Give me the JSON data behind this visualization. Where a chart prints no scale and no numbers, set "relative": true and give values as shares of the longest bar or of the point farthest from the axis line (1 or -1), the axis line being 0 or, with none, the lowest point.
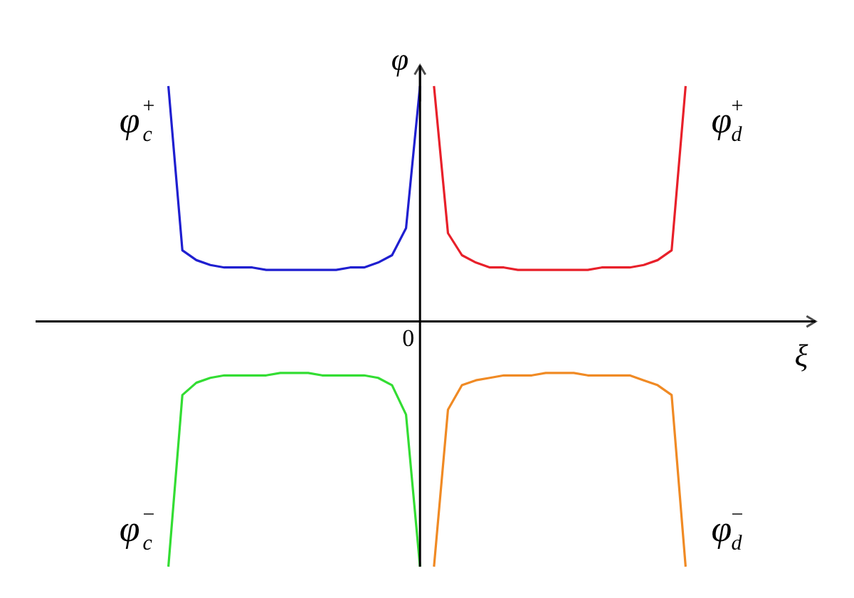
{
  "chart_data": {
    "type": "line",
    "relative": true,
    "xlabel": "ξ",
    "ylabel": "φ",
    "marker": "none",
    "line_style": "solid",
    "categories": [
      null,
      null,
      null,
      null,
      null,
      null,
      null,
      null,
      null,
      null,
      null,
      null,
      null,
      null,
      null,
      null,
      null,
      null,
      null,
      null,
      null,
      null,
      null,
      null,
      null,
      null,
      null,
      null,
      null,
      null,
      null,
      null,
      null,
      null,
      null,
      null,
      null,
      null,
      null,
      null,
      null,
      null,
      null,
      null,
      null,
      null,
      null,
      null,
      null,
      null,
      null,
      null,
      null,
      null,
      null,
      null,
      null
    ],
    "series": [
      {
        "name": "φ$_{c}$$^{+}$",
        "color": "#1f1fd0",
        "values": [
          null,
          null,
          null,
          null,
          null,
          null,
          null,
          null,
          null,
          null,
          0.96,
          0.29,
          0.25,
          0.23,
          0.22,
          0.22,
          0.22,
          0.21,
          0.21,
          0.21,
          0.21,
          0.21,
          0.21,
          0.22,
          0.22,
          0.24,
          0.27,
          0.38,
          0.96,
          null,
          null,
          null,
          null,
          null,
          null,
          null,
          null,
          null,
          null,
          null,
          null,
          null,
          null,
          null,
          null,
          null,
          null,
          null,
          null,
          null,
          null,
          null,
          null,
          null,
          null,
          null,
          null
        ]
      },
      {
        "name": "φ$_{d}$$^{+}$",
        "color": "#e8202a",
        "values": [
          null,
          null,
          null,
          null,
          null,
          null,
          null,
          null,
          null,
          null,
          null,
          null,
          null,
          null,
          null,
          null,
          null,
          null,
          null,
          null,
          null,
          null,
          null,
          null,
          null,
          null,
          null,
          null,
          null,
          0.96,
          0.36,
          0.27,
          0.24,
          0.22,
          0.22,
          0.21,
          0.21,
          0.21,
          0.21,
          0.21,
          0.21,
          0.22,
          0.22,
          0.22,
          0.23,
          0.25,
          0.29,
          0.96,
          null,
          null,
          null,
          null,
          null,
          null,
          null,
          null,
          null
        ]
      },
      {
        "name": "φ$_{c}$$^{−}$",
        "color": "#33dd33",
        "values": [
          null,
          null,
          null,
          null,
          null,
          null,
          null,
          null,
          null,
          null,
          -1,
          -0.3,
          -0.25,
          -0.23,
          -0.22,
          -0.22,
          -0.22,
          -0.22,
          -0.21,
          -0.21,
          -0.21,
          -0.22,
          -0.22,
          -0.22,
          -0.22,
          -0.23,
          -0.26,
          -0.38,
          -1,
          null,
          null,
          null,
          null,
          null,
          null,
          null,
          null,
          null,
          null,
          null,
          null,
          null,
          null,
          null,
          null,
          null,
          null,
          null,
          null,
          null,
          null,
          null,
          null,
          null,
          null,
          null,
          null
        ]
      },
      {
        "name": "φ$_{d}$$^{−}$",
        "color": "#f08a24",
        "values": [
          null,
          null,
          null,
          null,
          null,
          null,
          null,
          null,
          null,
          null,
          null,
          null,
          null,
          null,
          null,
          null,
          null,
          null,
          null,
          null,
          null,
          null,
          null,
          null,
          null,
          null,
          null,
          null,
          null,
          -1,
          -0.36,
          -0.26,
          -0.24,
          -0.23,
          -0.22,
          -0.22,
          -0.22,
          -0.21,
          -0.21,
          -0.21,
          -0.22,
          -0.22,
          -0.22,
          -0.22,
          -0.24,
          -0.26,
          -0.3,
          -1,
          null,
          null,
          null,
          null,
          null,
          null,
          null,
          null,
          null
        ]
      }
    ],
    "annotations": [
      "0"
    ]
  }
}
